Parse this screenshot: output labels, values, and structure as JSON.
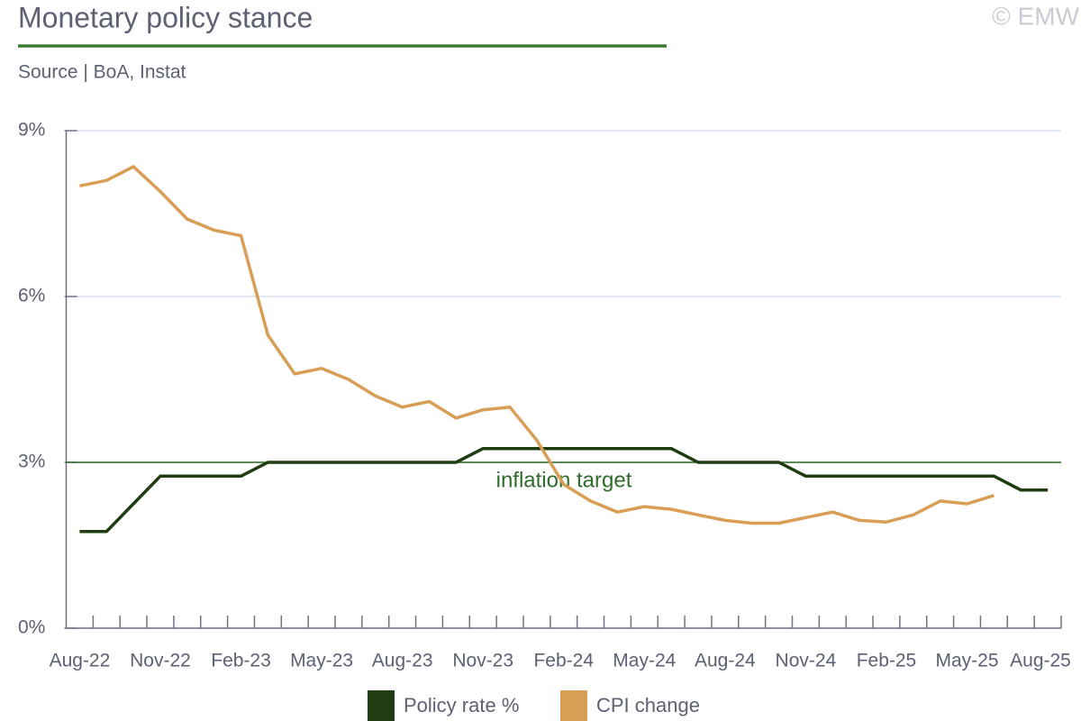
{
  "chart_data": {
    "type": "line",
    "title": "Monetary policy stance",
    "subtitle": "Source | BoA, Instat",
    "watermark": "© EMW",
    "categories": [
      "Aug-22",
      null,
      null,
      "Nov-22",
      null,
      null,
      "Feb-23",
      null,
      null,
      "May-23",
      null,
      null,
      "Aug-23",
      null,
      null,
      "Nov-23",
      null,
      null,
      "Feb-24",
      null,
      null,
      "May-24",
      null,
      null,
      "Aug-24",
      null,
      null,
      "Nov-24",
      null,
      null,
      "Feb-25",
      null,
      null,
      "May-25",
      null,
      null,
      "Aug-25"
    ],
    "series": [
      {
        "name": "Policy rate %",
        "color": "#1f3d10",
        "values": [
          1.75,
          1.75,
          2.25,
          2.75,
          2.75,
          2.75,
          2.75,
          3.0,
          3.0,
          3.0,
          3.0,
          3.0,
          3.0,
          3.0,
          3.0,
          3.25,
          3.25,
          3.25,
          3.25,
          3.25,
          3.25,
          3.25,
          3.25,
          3.0,
          3.0,
          3.0,
          3.0,
          2.75,
          2.75,
          2.75,
          2.75,
          2.75,
          2.75,
          2.75,
          2.75,
          2.5,
          2.5
        ]
      },
      {
        "name": "CPI change",
        "color": "#d99e55",
        "values": [
          8.0,
          8.1,
          8.35,
          7.9,
          7.4,
          7.2,
          7.1,
          5.3,
          4.6,
          4.7,
          4.5,
          4.2,
          4.0,
          4.1,
          3.8,
          3.95,
          4.0,
          3.4,
          2.6,
          2.3,
          2.1,
          2.2,
          2.15,
          2.05,
          1.95,
          1.9,
          1.9,
          2.0,
          2.1,
          1.95,
          1.92,
          2.05,
          2.3,
          2.25,
          2.4,
          null,
          null
        ]
      }
    ],
    "target": {
      "value": 3,
      "label": "inflation target",
      "color": "#2f6b2a"
    },
    "ylim": [
      0,
      9
    ],
    "yticks": [
      {
        "value": 0,
        "label": "0%"
      },
      {
        "value": 3,
        "label": "3%"
      },
      {
        "value": 6,
        "label": "6%"
      },
      {
        "value": 9,
        "label": "9%"
      }
    ],
    "grid": true,
    "legend": "bottom"
  }
}
